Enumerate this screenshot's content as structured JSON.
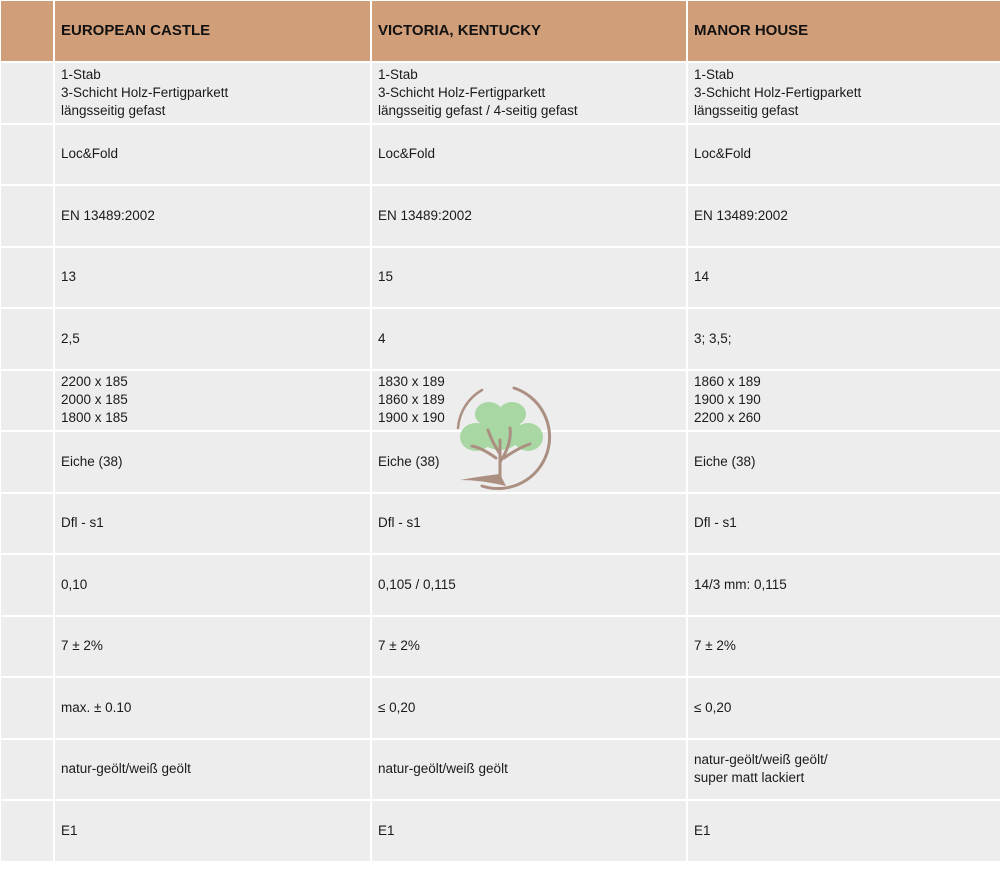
{
  "headers": [
    "",
    "EUROPEAN CASTLE",
    "VICTORIA, KENTUCKY",
    "MANOR HOUSE"
  ],
  "rows": [
    [
      [
        "1-Stab",
        "3-Schicht Holz-Fertigparkett",
        "längsseitig gefast"
      ],
      [
        "1-Stab",
        "3-Schicht Holz-Fertigparkett",
        "längsseitig gefast / 4-seitig gefast"
      ],
      [
        "1-Stab",
        "3-Schicht Holz-Fertigparkett",
        "längsseitig gefast"
      ]
    ],
    [
      [
        "Loc&Fold"
      ],
      [
        "Loc&Fold"
      ],
      [
        "Loc&Fold"
      ]
    ],
    [
      [
        "EN 13489:2002"
      ],
      [
        "EN 13489:2002"
      ],
      [
        "EN 13489:2002"
      ]
    ],
    [
      [
        "13"
      ],
      [
        "15"
      ],
      [
        "14"
      ]
    ],
    [
      [
        "2,5"
      ],
      [
        "4"
      ],
      [
        "3; 3,5;"
      ]
    ],
    [
      [
        "2200 x 185",
        "2000 x 185",
        "1800 x 185"
      ],
      [
        "1830 x 189",
        "1860 x 189",
        "1900 x 190"
      ],
      [
        "1860 x 189",
        "1900 x 190",
        "2200 x 260"
      ]
    ],
    [
      [
        "Eiche (38)"
      ],
      [
        "Eiche (38)"
      ],
      [
        "Eiche (38)"
      ]
    ],
    [
      [
        "Dfl - s1"
      ],
      [
        "Dfl - s1"
      ],
      [
        "Dfl - s1"
      ]
    ],
    [
      [
        "0,10"
      ],
      [
        "0,105 / 0,115"
      ],
      [
        "14/3 mm: 0,115"
      ]
    ],
    [
      [
        "7 ± 2%"
      ],
      [
        "7 ± 2%"
      ],
      [
        "7 ± 2%"
      ]
    ],
    [
      [
        "max. ± 0.10"
      ],
      [
        "≤ 0,20"
      ],
      [
        "≤ 0,20"
      ]
    ],
    [
      [
        "natur-geölt/weiß geölt"
      ],
      [
        "natur-geölt/weiß geölt"
      ],
      [
        "natur-geölt/weiß geölt/",
        "super matt lackiert"
      ]
    ],
    [
      [
        "E1"
      ],
      [
        "E1"
      ],
      [
        "E1"
      ]
    ]
  ],
  "colors": {
    "header_bg": "#d09e78",
    "cell_bg": "#ededed",
    "logo_ring": "#a88a7c",
    "logo_leaves": "#a5d6a0"
  },
  "watermark": {
    "icon": "tree-logo"
  }
}
